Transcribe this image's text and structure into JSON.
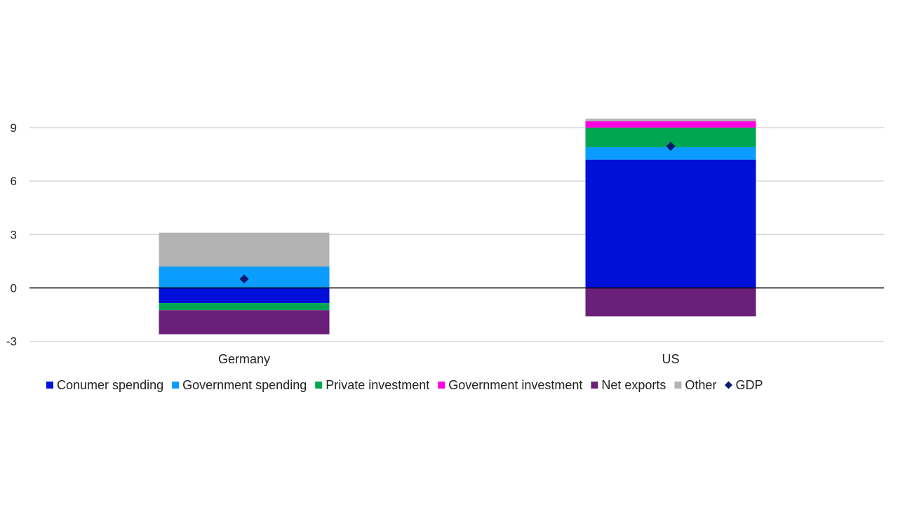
{
  "chart_data": {
    "type": "bar",
    "stacked": true,
    "categories": [
      "Germany",
      "US"
    ],
    "series": [
      {
        "name": "Conumer spending",
        "color": "#0010d8",
        "values": [
          -0.85,
          7.2
        ]
      },
      {
        "name": "Government spending",
        "color": "#0a9cff",
        "values": [
          1.2,
          0.7
        ]
      },
      {
        "name": "Private investment",
        "color": "#00a651",
        "values": [
          -0.4,
          1.1
        ]
      },
      {
        "name": "Government investment",
        "color": "#ff00e0",
        "values": [
          0.0,
          0.35
        ]
      },
      {
        "name": "Net exports",
        "color": "#6a1f78",
        "values": [
          -1.35,
          -1.6
        ]
      },
      {
        "name": "Other",
        "color": "#b3b3b3",
        "values": [
          1.9,
          0.15
        ]
      }
    ],
    "markers": {
      "name": "GDP",
      "color": "#0a1a6e",
      "shape": "diamond",
      "values": [
        0.5,
        7.95
      ]
    },
    "ylim": [
      -3,
      12
    ],
    "yticks": [
      "-3",
      "0",
      "3",
      "6",
      "9"
    ],
    "ytick_values": [
      -3,
      0,
      3,
      6,
      9
    ],
    "grid": true,
    "legend_position": "bottom"
  }
}
